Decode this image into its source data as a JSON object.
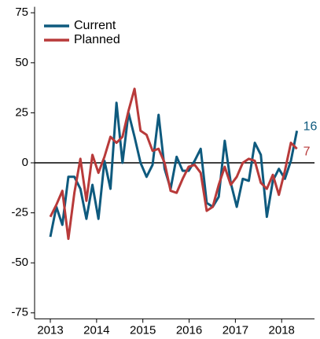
{
  "chart_data": {
    "type": "line",
    "x": [
      2013,
      2013.13,
      2013.26,
      2013.39,
      2013.52,
      2013.65,
      2013.78,
      2013.91,
      2014.04,
      2014.17,
      2014.3,
      2014.43,
      2014.56,
      2014.69,
      2014.82,
      2014.95,
      2015.08,
      2015.21,
      2015.34,
      2015.47,
      2015.6,
      2015.73,
      2015.86,
      2015.99,
      2016.12,
      2016.25,
      2016.38,
      2016.51,
      2016.64,
      2016.77,
      2016.9,
      2017.03,
      2017.16,
      2017.29,
      2017.42,
      2017.55,
      2017.68,
      2017.81,
      2017.94,
      2018.07,
      2018.2,
      2018.33
    ],
    "series": [
      {
        "name": "Current",
        "color": "#0e5a7e",
        "values": [
          -37,
          -22,
          -31,
          -7,
          -7,
          -13,
          -28,
          -11,
          -28,
          1,
          -13,
          30,
          0,
          25,
          13,
          0,
          -7,
          -1,
          24,
          -3,
          -13,
          3,
          -4,
          -4,
          1,
          7,
          -20,
          -22,
          -17,
          11,
          -10,
          -22,
          -8,
          -9,
          10,
          4,
          -27,
          -9,
          -3,
          -8,
          1,
          16
        ]
      },
      {
        "name": "Planned",
        "color": "#b83a3a",
        "values": [
          -27,
          -21,
          -14,
          -38,
          -15,
          2,
          -19,
          4,
          -5,
          3,
          13,
          10,
          13,
          26,
          37,
          16,
          14,
          6,
          7,
          0,
          -14,
          -15,
          -8,
          -2,
          -1,
          -5,
          -24,
          -22,
          -11,
          -2,
          -11,
          -7,
          0,
          2,
          1,
          -10,
          -13,
          -6,
          -16,
          -4,
          10,
          7
        ]
      }
    ],
    "xlim": [
      2012.66,
      2018.71
    ],
    "xticks": [
      2013,
      2014,
      2015,
      2016,
      2017,
      2018
    ],
    "ylim": [
      -78,
      78
    ],
    "yticks": [
      75,
      50,
      25,
      0,
      -25,
      -50,
      -75
    ],
    "legend": "upper left"
  }
}
